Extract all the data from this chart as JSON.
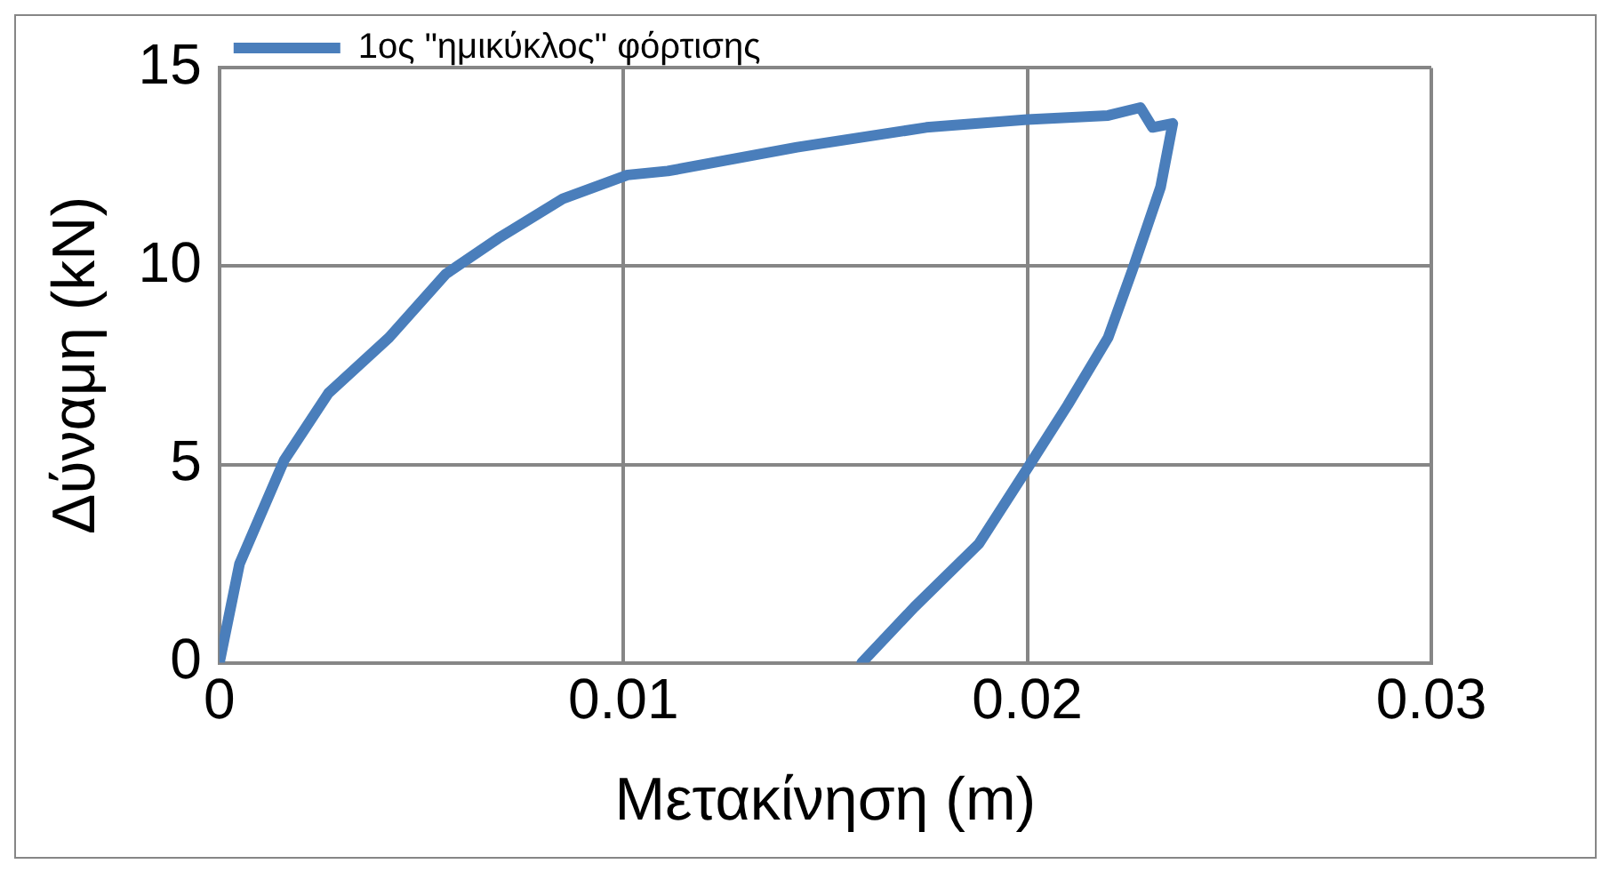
{
  "chart_data": {
    "type": "line",
    "xlabel": "Μετακίνηση (m)",
    "ylabel": "Δύναμη (kN)",
    "xlim": [
      0,
      0.03
    ],
    "xticks": [
      0,
      0.01,
      0.02,
      0.03
    ],
    "ylim": [
      0,
      15
    ],
    "yticks": [
      0,
      5,
      10,
      15
    ],
    "grid": true,
    "legend": "top left",
    "marker": "none",
    "line_style": "solid",
    "series": [
      {
        "name": "1ος \"ημικύκλος\" φόρτισης",
        "color": "#4a7ebb",
        "x": [
          0,
          0.0005,
          0.0016,
          0.0027,
          0.0042,
          0.0056,
          0.0069,
          0.0085,
          0.0101,
          0.0111,
          0.0143,
          0.0175,
          0.02,
          0.022,
          0.0228,
          0.0231,
          0.0236,
          0.0233,
          0.0226,
          0.022,
          0.021,
          0.02,
          0.0188,
          0.0172,
          0.0159
        ],
        "values": [
          0,
          2.5,
          5.1,
          6.8,
          8.2,
          9.8,
          10.7,
          11.7,
          12.3,
          12.4,
          13,
          13.5,
          13.7,
          13.8,
          14,
          13.5,
          13.6,
          12,
          9.9,
          8.2,
          6.5,
          4.9,
          3,
          1.4,
          0
        ]
      }
    ]
  }
}
